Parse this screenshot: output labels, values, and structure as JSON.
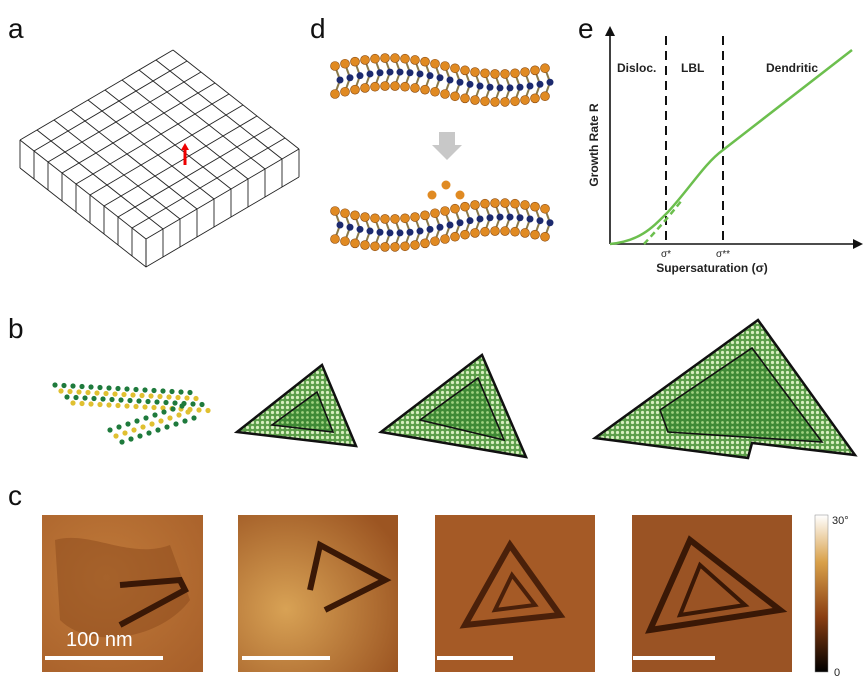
{
  "panels": [
    {
      "label": "a"
    },
    {
      "label": "d"
    },
    {
      "label": "e",
      "regions": [
        "Disloc.",
        "LBL",
        "Dendritic"
      ],
      "y_axis_label": "Growth Rate R",
      "x_axis_label": "Supersaturation (σ)",
      "x_marks": [
        "σ*",
        "σ**"
      ]
    },
    {
      "label": "b"
    },
    {
      "label": "c",
      "scale_bar": "100 nm",
      "colorbar": {
        "max": "30°",
        "min": "0"
      }
    }
  ]
}
